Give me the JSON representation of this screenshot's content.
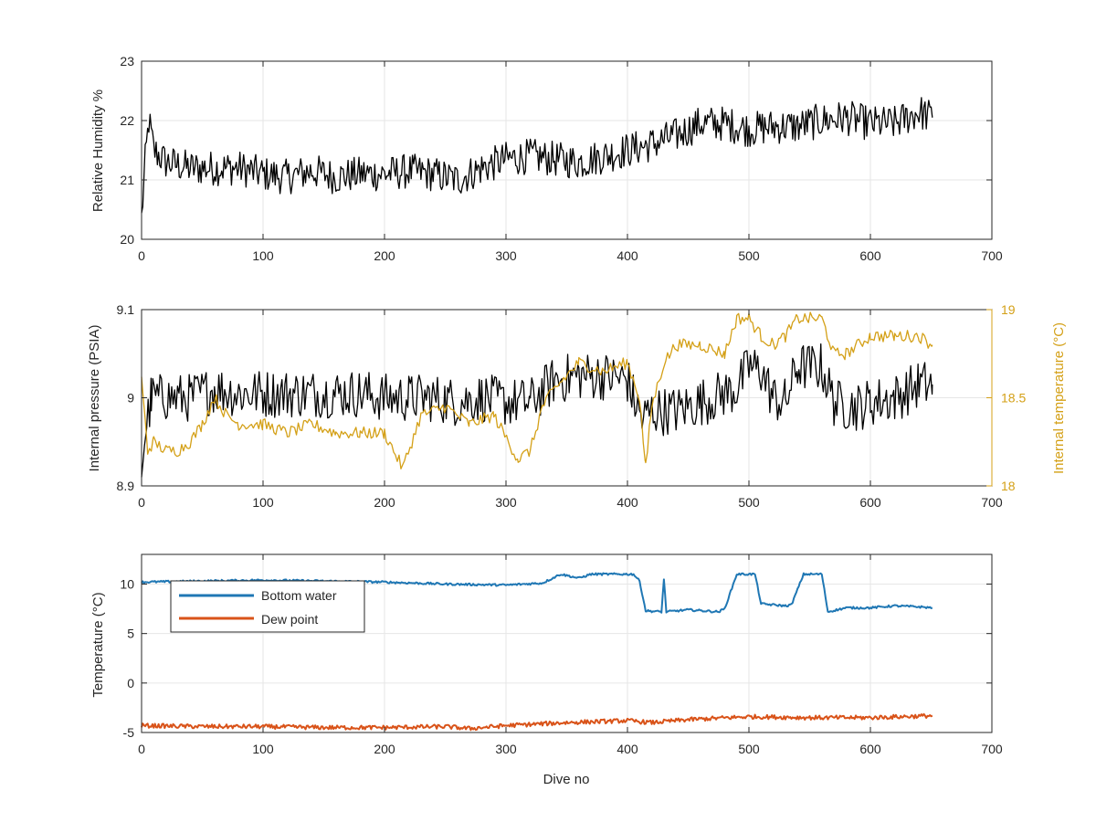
{
  "chart_data": [
    {
      "type": "line",
      "ylabel": "Relative Humidity %",
      "xlabel": "",
      "xlim": [
        0,
        700
      ],
      "ylim": [
        20,
        23
      ],
      "xticks": [
        0,
        100,
        200,
        300,
        400,
        500,
        600,
        700
      ],
      "yticks": [
        20,
        21,
        22,
        23
      ],
      "grid": true,
      "series": [
        {
          "name": "",
          "color": "#000000",
          "points": [
            [
              0,
              20.35
            ],
            [
              3,
              21.3
            ],
            [
              6,
              22.0
            ],
            [
              10,
              21.5
            ],
            [
              20,
              21.3
            ],
            [
              40,
              21.2
            ],
            [
              60,
              21.2
            ],
            [
              80,
              21.2
            ],
            [
              100,
              21.1
            ],
            [
              120,
              21.05
            ],
            [
              140,
              21.15
            ],
            [
              160,
              21.05
            ],
            [
              180,
              21.1
            ],
            [
              200,
              21.1
            ],
            [
              220,
              21.15
            ],
            [
              240,
              21.1
            ],
            [
              260,
              21.0
            ],
            [
              280,
              21.2
            ],
            [
              300,
              21.35
            ],
            [
              320,
              21.4
            ],
            [
              340,
              21.35
            ],
            [
              360,
              21.3
            ],
            [
              380,
              21.4
            ],
            [
              400,
              21.5
            ],
            [
              420,
              21.6
            ],
            [
              440,
              21.75
            ],
            [
              460,
              21.95
            ],
            [
              480,
              21.95
            ],
            [
              500,
              21.85
            ],
            [
              520,
              21.9
            ],
            [
              540,
              21.9
            ],
            [
              560,
              22.0
            ],
            [
              580,
              22.05
            ],
            [
              600,
              21.95
            ],
            [
              620,
              21.95
            ],
            [
              640,
              22.15
            ],
            [
              651,
              22.05
            ]
          ]
        }
      ]
    },
    {
      "type": "line",
      "ylabel": "Internal pressure (PSIA)",
      "y2label": "Internal temperature (°C)",
      "xlabel": "",
      "xlim": [
        0,
        700
      ],
      "ylim": [
        8.9,
        9.1
      ],
      "y2lim": [
        18,
        19
      ],
      "xticks": [
        0,
        100,
        200,
        300,
        400,
        500,
        600,
        700
      ],
      "yticks": [
        8.9,
        9,
        9.1
      ],
      "y2ticks": [
        18,
        18.5,
        19
      ],
      "grid": true,
      "series": [
        {
          "name": "",
          "axis": "left",
          "color": "#000000",
          "points": [
            [
              0,
              8.92
            ],
            [
              3,
              8.96
            ],
            [
              8,
              9.0
            ],
            [
              20,
              9.0
            ],
            [
              40,
              9.0
            ],
            [
              60,
              9.01
            ],
            [
              80,
              9.005
            ],
            [
              100,
              9.005
            ],
            [
              120,
              9.005
            ],
            [
              140,
              9.005
            ],
            [
              160,
              9.005
            ],
            [
              180,
              9.005
            ],
            [
              200,
              9.0
            ],
            [
              220,
              9.0
            ],
            [
              240,
              9.0
            ],
            [
              260,
              8.995
            ],
            [
              280,
              9.0
            ],
            [
              300,
              8.995
            ],
            [
              320,
              8.995
            ],
            [
              340,
              9.02
            ],
            [
              360,
              9.025
            ],
            [
              380,
              9.025
            ],
            [
              400,
              9.02
            ],
            [
              405,
              9.0
            ],
            [
              412,
              8.975
            ],
            [
              420,
              8.985
            ],
            [
              440,
              8.985
            ],
            [
              460,
              8.995
            ],
            [
              480,
              9.005
            ],
            [
              490,
              9.01
            ],
            [
              500,
              9.035
            ],
            [
              510,
              9.03
            ],
            [
              520,
              9.0
            ],
            [
              530,
              8.995
            ],
            [
              540,
              9.035
            ],
            [
              560,
              9.035
            ],
            [
              570,
              8.995
            ],
            [
              580,
              8.99
            ],
            [
              590,
              8.99
            ],
            [
              600,
              8.995
            ],
            [
              620,
              9.0
            ],
            [
              640,
              9.015
            ],
            [
              651,
              9.015
            ]
          ]
        },
        {
          "name": "",
          "axis": "right",
          "color": "#D4A017",
          "points": [
            [
              0,
              18.6
            ],
            [
              5,
              18.2
            ],
            [
              10,
              18.25
            ],
            [
              20,
              18.2
            ],
            [
              30,
              18.2
            ],
            [
              40,
              18.25
            ],
            [
              50,
              18.35
            ],
            [
              60,
              18.5
            ],
            [
              70,
              18.4
            ],
            [
              80,
              18.35
            ],
            [
              100,
              18.35
            ],
            [
              120,
              18.3
            ],
            [
              140,
              18.35
            ],
            [
              160,
              18.3
            ],
            [
              180,
              18.3
            ],
            [
              200,
              18.3
            ],
            [
              215,
              18.1
            ],
            [
              230,
              18.4
            ],
            [
              250,
              18.45
            ],
            [
              270,
              18.35
            ],
            [
              290,
              18.4
            ],
            [
              310,
              18.15
            ],
            [
              320,
              18.2
            ],
            [
              330,
              18.45
            ],
            [
              340,
              18.55
            ],
            [
              360,
              18.7
            ],
            [
              380,
              18.65
            ],
            [
              400,
              18.7
            ],
            [
              410,
              18.5
            ],
            [
              415,
              18.1
            ],
            [
              420,
              18.45
            ],
            [
              430,
              18.7
            ],
            [
              440,
              18.8
            ],
            [
              460,
              18.8
            ],
            [
              480,
              18.75
            ],
            [
              490,
              18.95
            ],
            [
              500,
              18.95
            ],
            [
              510,
              18.85
            ],
            [
              520,
              18.8
            ],
            [
              530,
              18.85
            ],
            [
              540,
              18.95
            ],
            [
              560,
              18.95
            ],
            [
              570,
              18.75
            ],
            [
              580,
              18.75
            ],
            [
              600,
              18.85
            ],
            [
              620,
              18.85
            ],
            [
              640,
              18.85
            ],
            [
              651,
              18.8
            ]
          ]
        }
      ]
    },
    {
      "type": "line",
      "ylabel": "Temperature (°C)",
      "xlabel": "Dive no",
      "xlim": [
        0,
        700
      ],
      "ylim": [
        -5,
        13
      ],
      "xticks": [
        0,
        100,
        200,
        300,
        400,
        500,
        600,
        700
      ],
      "yticks": [
        -5,
        0,
        5,
        10
      ],
      "grid": true,
      "legend": "top-left",
      "series": [
        {
          "name": "Bottom water",
          "color": "#1F77B4",
          "points": [
            [
              0,
              10.2
            ],
            [
              50,
              10.3
            ],
            [
              100,
              10.4
            ],
            [
              150,
              10.3
            ],
            [
              200,
              10.2
            ],
            [
              250,
              10.0
            ],
            [
              300,
              9.9
            ],
            [
              330,
              10.1
            ],
            [
              345,
              11.0
            ],
            [
              360,
              10.6
            ],
            [
              370,
              11.0
            ],
            [
              390,
              11.0
            ],
            [
              405,
              11.0
            ],
            [
              410,
              10.3
            ],
            [
              415,
              7.3
            ],
            [
              428,
              7.2
            ],
            [
              430,
              10.5
            ],
            [
              432,
              7.2
            ],
            [
              450,
              7.4
            ],
            [
              475,
              7.2
            ],
            [
              480,
              7.5
            ],
            [
              490,
              11.0
            ],
            [
              505,
              11.0
            ],
            [
              510,
              8.0
            ],
            [
              530,
              7.8
            ],
            [
              535,
              7.9
            ],
            [
              545,
              11.0
            ],
            [
              560,
              11.0
            ],
            [
              565,
              7.2
            ],
            [
              580,
              7.6
            ],
            [
              600,
              7.6
            ],
            [
              620,
              7.8
            ],
            [
              640,
              7.7
            ],
            [
              651,
              7.6
            ]
          ]
        },
        {
          "name": "Dew point",
          "color": "#D95319",
          "points": [
            [
              0,
              -4.3
            ],
            [
              50,
              -4.4
            ],
            [
              100,
              -4.4
            ],
            [
              150,
              -4.5
            ],
            [
              200,
              -4.5
            ],
            [
              250,
              -4.4
            ],
            [
              270,
              -4.6
            ],
            [
              300,
              -4.3
            ],
            [
              350,
              -4.0
            ],
            [
              400,
              -3.8
            ],
            [
              420,
              -4.0
            ],
            [
              450,
              -3.7
            ],
            [
              500,
              -3.4
            ],
            [
              550,
              -3.5
            ],
            [
              600,
              -3.5
            ],
            [
              651,
              -3.3
            ]
          ]
        }
      ]
    }
  ]
}
